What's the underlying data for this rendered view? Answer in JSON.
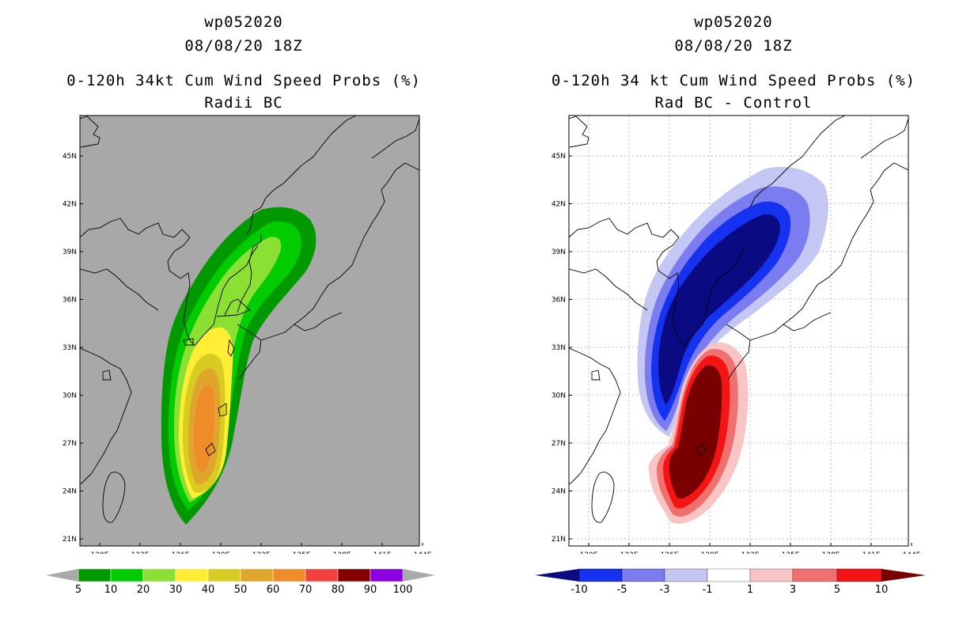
{
  "left": {
    "title_line1": "wp052020",
    "title_line2": "08/08/20 18Z",
    "title_line3": "0-120h 34kt Cum Wind Speed Probs (%)",
    "title_line4": "Radii BC",
    "lat_labels": [
      "45N",
      "42N",
      "39N",
      "36N",
      "33N",
      "30N",
      "27N",
      "24N",
      "21N"
    ],
    "lon_labels": [
      "120E",
      "123E",
      "126E",
      "129E",
      "132E",
      "135E",
      "138E",
      "141E",
      "144E"
    ],
    "colorbar_labels": [
      "5",
      "10",
      "20",
      "30",
      "40",
      "50",
      "60",
      "70",
      "80",
      "90",
      "100"
    ],
    "colors": {
      "background": "#a8a8a8",
      "c5": "#009a00",
      "c10": "#00cc00",
      "c20": "#8ce034",
      "c30": "#ffee33",
      "c40": "#d8cc22",
      "c50": "#e0a62c",
      "c60": "#ef8c2a",
      "c70": "#f04040",
      "c80": "#870000",
      "c90": "#8a00e0",
      "end_gray": "#aaaaaa"
    }
  },
  "right": {
    "title_line1": "wp052020",
    "title_line2": "08/08/20 18Z",
    "title_line3": "0-120h 34 kt Cum Wind Speed Probs (%)",
    "title_line4": "Rad BC - Control",
    "lat_labels": [
      "45N",
      "42N",
      "39N",
      "36N",
      "33N",
      "30N",
      "27N",
      "24N",
      "21N"
    ],
    "lon_labels": [
      "120E",
      "123E",
      "126E",
      "129E",
      "132E",
      "135E",
      "138E",
      "141E",
      "144E"
    ],
    "colorbar_labels": [
      "-10",
      "-5",
      "-3",
      "-1",
      "1",
      "3",
      "5",
      "10"
    ],
    "colors": {
      "n10": "#0a0a82",
      "n5": "#1432f0",
      "n3": "#7a7cf0",
      "n1": "#c4c6f4",
      "zero": "#ffffff",
      "p1": "#f8c4c4",
      "p3": "#f07070",
      "p5": "#f41414",
      "p10": "#780000"
    }
  }
}
